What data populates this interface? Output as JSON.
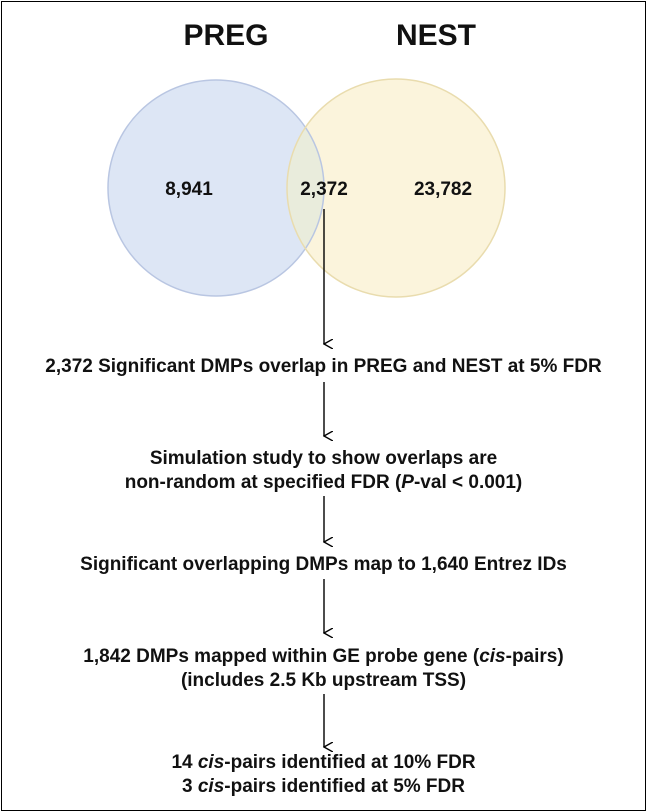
{
  "venn": {
    "sets": [
      {
        "name": "PREG",
        "only_count": "8,941",
        "fill": "#dde6f5",
        "stroke": "#b9c6e2"
      },
      {
        "name": "NEST",
        "only_count": "23,782",
        "fill": "#fbf4dc",
        "stroke": "#e9dcae"
      }
    ],
    "overlap_count": "2,372",
    "overlap_fill": "#e9ecdc"
  },
  "steps": [
    {
      "lines": [
        [
          {
            "t": "2,372 Significant DMPs overlap in PREG and NEST at 5% FDR"
          }
        ]
      ]
    },
    {
      "lines": [
        [
          {
            "t": "Simulation study to show overlaps are"
          }
        ],
        [
          {
            "t": "non-random at specified FDR ("
          },
          {
            "t": "P",
            "i": true
          },
          {
            "t": "-val < 0.001)"
          }
        ]
      ]
    },
    {
      "lines": [
        [
          {
            "t": "Significant overlapping DMPs map to 1,640 Entrez IDs"
          }
        ]
      ]
    },
    {
      "lines": [
        [
          {
            "t": "1,842 DMPs mapped within GE probe gene ("
          },
          {
            "t": "cis",
            "i": true
          },
          {
            "t": "-pairs)"
          }
        ],
        [
          {
            "t": "(includes 2.5 Kb upstream TSS)"
          }
        ]
      ]
    },
    {
      "lines": [
        [
          {
            "t": "14 "
          },
          {
            "t": "cis",
            "i": true
          },
          {
            "t": "-pairs identified at 10% FDR"
          }
        ],
        [
          {
            "t": "3 "
          },
          {
            "t": "cis",
            "i": true
          },
          {
            "t": "-pairs identified at 5% FDR"
          }
        ]
      ]
    }
  ]
}
